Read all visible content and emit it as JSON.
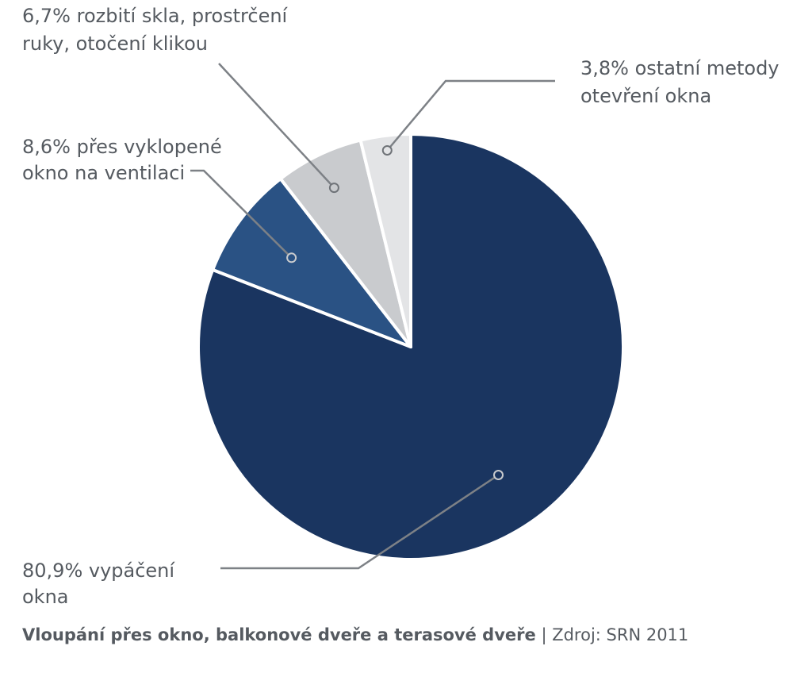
{
  "chart_data": {
    "type": "pie",
    "slices": [
      {
        "value": 80.9,
        "label_lines": [
          "80,9% vypáčení",
          "okna"
        ],
        "color": "#1a3560"
      },
      {
        "value": 8.6,
        "label_lines": [
          "8,6% přes vyklopené",
          "okno na ventilaci"
        ],
        "color": "#2a5284"
      },
      {
        "value": 6.7,
        "label_lines": [
          "6,7% rozbití skla, prostrčení",
          "ruky, otočení klikou"
        ],
        "color": "#c9cbce"
      },
      {
        "value": 3.8,
        "label_lines": [
          "3,8% ostatní metody",
          "otevření okna"
        ],
        "color": "#e3e4e6"
      }
    ],
    "start": "12 o'clock, clockwise",
    "leader_line_color": "#7d8186"
  },
  "footer": {
    "title": "Vloupání přes okno, balkonové dveře a terasové dveře",
    "separator": "|",
    "source": "Zdroj: SRN 2011"
  }
}
